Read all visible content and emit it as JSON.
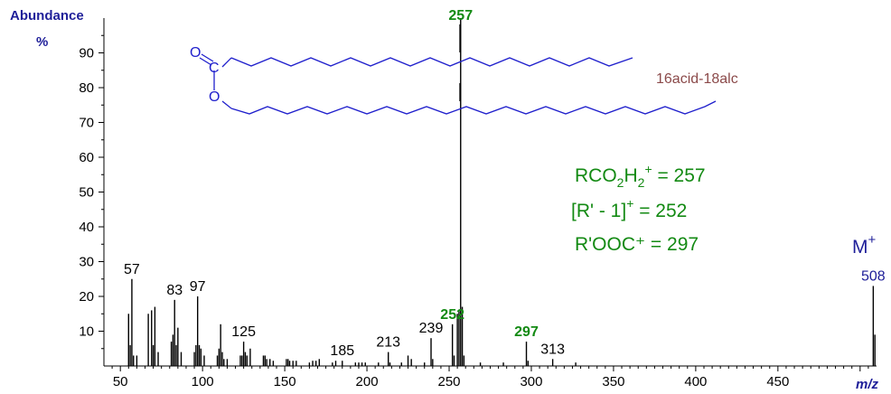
{
  "chart_data": {
    "type": "bar",
    "title": "",
    "xlabel": "m/z",
    "ylabel": "Abundance",
    "ylabel_unit": "%",
    "xlim": [
      40,
      510
    ],
    "ylim": [
      0,
      100
    ],
    "x_ticks": [
      50,
      100,
      150,
      200,
      250,
      300,
      350,
      400,
      450
    ],
    "y_ticks": [
      10,
      20,
      30,
      40,
      50,
      60,
      70,
      80,
      90
    ],
    "series": [
      {
        "x": [
          55,
          56,
          57,
          58,
          60,
          67,
          69,
          70,
          71,
          73,
          81,
          82,
          83,
          84,
          85,
          87,
          95,
          96,
          97,
          98,
          99,
          101,
          109,
          110,
          111,
          112,
          113,
          115,
          123,
          124,
          125,
          126,
          127,
          129,
          137,
          138,
          139,
          141,
          143,
          151,
          152,
          153,
          155,
          157,
          165,
          167,
          169,
          171,
          179,
          181,
          185,
          193,
          195,
          197,
          199,
          207,
          213,
          214,
          221,
          225,
          227,
          235,
          239,
          240,
          252,
          253,
          255,
          256,
          257,
          258,
          259,
          269,
          283,
          297,
          298,
          313,
          327,
          508,
          509
        ],
        "values": [
          15,
          6,
          25,
          3,
          3,
          15,
          16,
          6,
          17,
          4,
          7,
          9,
          19,
          6,
          11,
          4,
          4,
          6,
          20,
          6,
          5,
          3,
          3,
          5,
          12,
          4,
          2,
          2,
          3,
          3,
          7,
          4,
          3,
          5,
          3,
          3,
          2,
          2,
          1.5,
          2,
          2,
          1.5,
          1.5,
          1.5,
          1,
          1.5,
          1.5,
          2,
          1,
          1.5,
          1.5,
          1,
          1,
          1,
          1,
          1,
          4,
          1,
          1,
          3,
          2,
          1,
          8,
          2,
          12,
          3,
          15,
          16,
          100,
          17,
          3,
          1,
          1,
          7,
          1.5,
          2,
          1,
          23,
          9
        ]
      }
    ],
    "peak_labels": [
      {
        "mz": 57,
        "label": "57",
        "color": "#000000"
      },
      {
        "mz": 83,
        "label": "83",
        "color": "#000000"
      },
      {
        "mz": 97,
        "label": "97",
        "color": "#000000"
      },
      {
        "mz": 125,
        "label": "125",
        "color": "#000000"
      },
      {
        "mz": 185,
        "label": "185",
        "color": "#000000"
      },
      {
        "mz": 213,
        "label": "213",
        "color": "#000000"
      },
      {
        "mz": 239,
        "label": "239",
        "color": "#000000"
      },
      {
        "mz": 252,
        "label": "252",
        "color": "#138a13",
        "bold": true
      },
      {
        "mz": 257,
        "label": "257",
        "color": "#138a13",
        "bold": true
      },
      {
        "mz": 297,
        "label": "297",
        "color": "#138a13",
        "bold": true
      },
      {
        "mz": 313,
        "label": "313",
        "color": "#000000"
      },
      {
        "mz": 508,
        "label": "508",
        "color": "#1f1f99"
      }
    ],
    "annotations": {
      "line1_a": "RCO",
      "line1_s1": "2",
      "line1_b": "H",
      "line1_s2": "2",
      "line1_sup": "+",
      "line1_c": " = 257",
      "line2_a": "[R' - 1]",
      "line2_sup": "+",
      "line2_b": " = 252",
      "line3": "R'OOC⁺ = 297",
      "molecular_ion": "M",
      "molecular_ion_sup": "+",
      "structure_label": "16acid-18alc",
      "atom_o1": "O",
      "atom_c": "C",
      "atom_o2": "O"
    },
    "colors": {
      "bars": "#000000",
      "axis_title": "#1f1f99",
      "structure": "#1f1fcc",
      "annotation": "#138a13",
      "structure_label": "#8b4a4a"
    }
  }
}
